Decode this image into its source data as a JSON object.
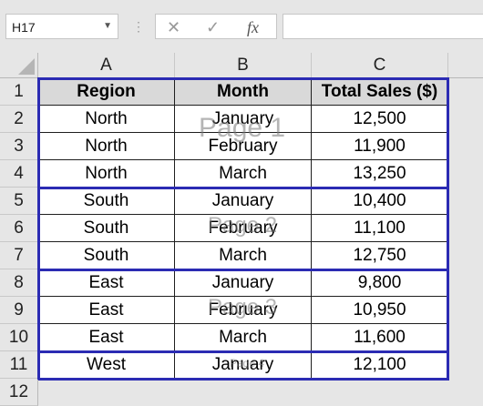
{
  "formula_bar": {
    "name_box": "H17",
    "formula": "",
    "icons": {
      "dropdown": "chevron-down-icon",
      "cancel": "cancel-icon",
      "enter": "enter-icon",
      "function": "fx-icon"
    }
  },
  "columns": [
    "A",
    "B",
    "C"
  ],
  "rows": [
    "1",
    "2",
    "3",
    "4",
    "5",
    "6",
    "7",
    "8",
    "9",
    "10",
    "11",
    "12"
  ],
  "table": {
    "headers": [
      "Region",
      "Month",
      "Total Sales ($)"
    ],
    "data": [
      [
        "North",
        "January",
        "12,500"
      ],
      [
        "North",
        "February",
        "11,900"
      ],
      [
        "North",
        "March",
        "13,250"
      ],
      [
        "South",
        "January",
        "10,400"
      ],
      [
        "South",
        "February",
        "11,100"
      ],
      [
        "South",
        "March",
        "12,750"
      ],
      [
        "East",
        "January",
        "9,800"
      ],
      [
        "East",
        "February",
        "10,950"
      ],
      [
        "East",
        "March",
        "11,600"
      ],
      [
        "West",
        "January",
        "12,100"
      ]
    ]
  },
  "page_labels": [
    "Page 1",
    "Page 2",
    "Page 3",
    "Page 4"
  ],
  "colors": {
    "page_break": "#2b2bb3",
    "header_fill": "#d9d9d9",
    "gridline": "#d4d4d4"
  }
}
